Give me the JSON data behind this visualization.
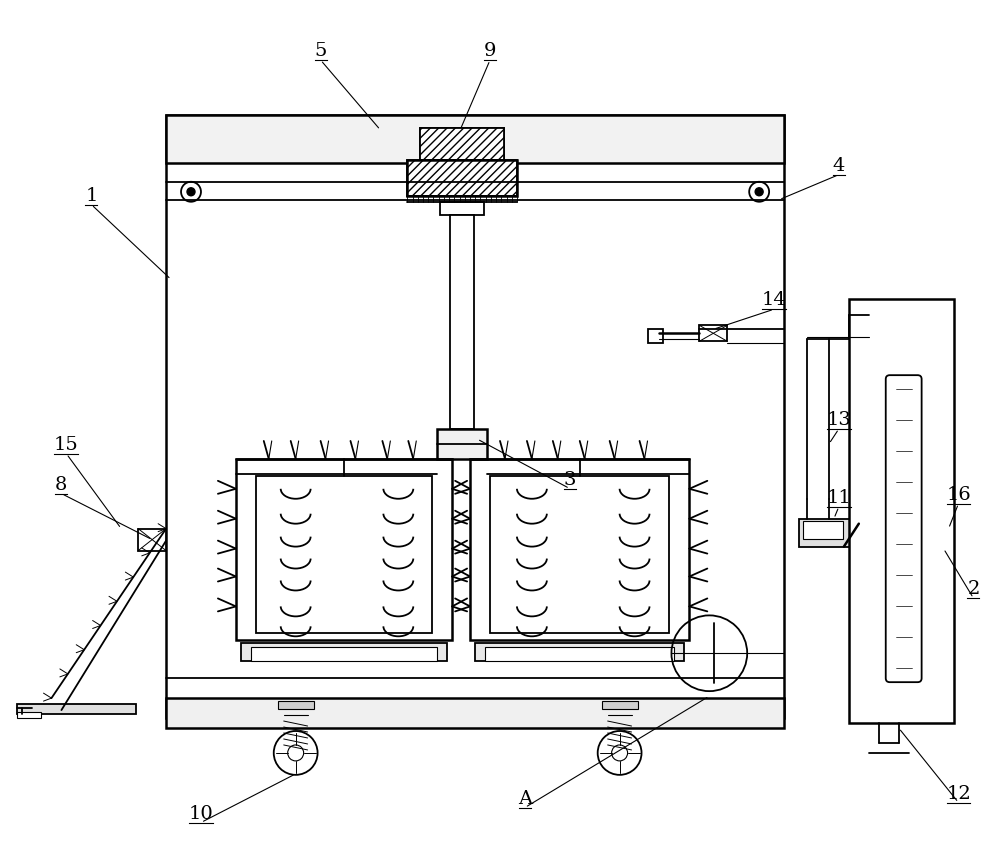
{
  "bg_color": "#ffffff",
  "fig_width": 10.0,
  "fig_height": 8.54,
  "lw_thin": 0.8,
  "lw_main": 1.3,
  "lw_thick": 1.8
}
